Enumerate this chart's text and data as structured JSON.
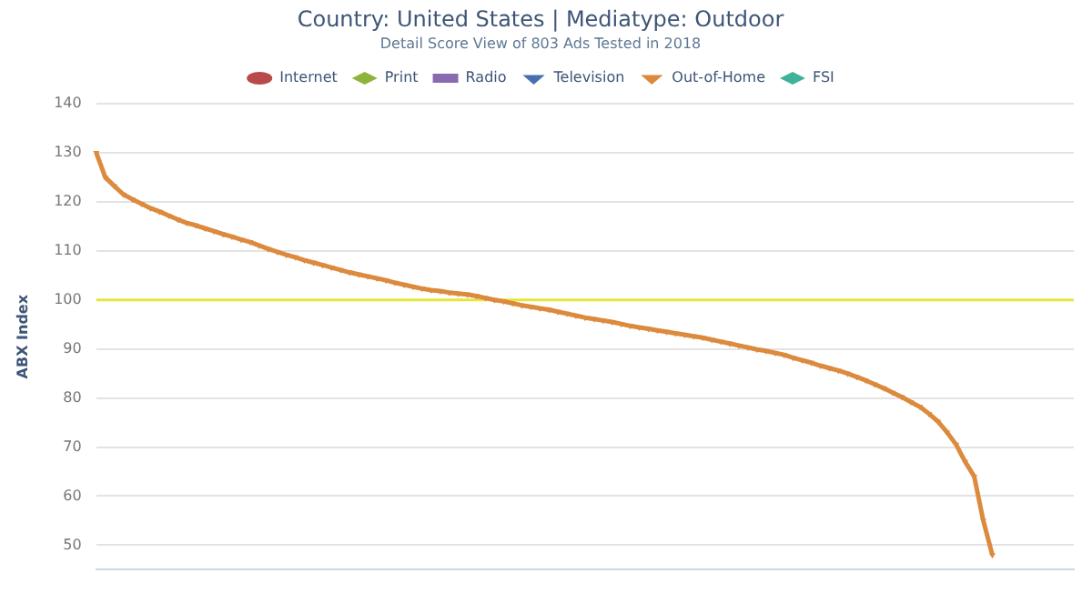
{
  "chart_data": {
    "type": "line",
    "title": "Country: United States | Mediatype: Outdoor",
    "subtitle": "Detail Score View of 803 Ads Tested in 2018",
    "ylabel": "ABX Index",
    "categories": [
      null,
      null,
      null,
      null,
      null,
      null,
      null,
      null,
      null,
      null,
      null,
      null,
      null,
      null,
      null,
      null,
      null,
      null,
      null,
      null,
      null,
      null,
      null,
      null,
      null,
      null,
      null,
      null,
      null,
      null,
      null,
      null,
      null,
      null,
      null,
      null,
      null,
      null,
      null,
      null,
      null,
      null,
      null,
      null,
      null,
      null,
      null,
      null,
      null,
      null,
      null,
      null,
      null,
      null,
      null,
      null,
      null,
      null,
      null,
      null,
      null,
      null,
      null,
      null,
      null,
      null,
      null,
      null,
      null,
      null,
      null,
      null,
      null,
      null,
      null,
      null,
      null,
      null,
      null,
      null,
      null,
      null,
      null,
      null,
      null,
      null,
      null,
      null,
      null,
      null,
      null,
      null,
      null,
      null,
      null,
      null,
      null,
      null,
      null,
      null,
      null,
      null,
      null,
      null,
      null,
      null,
      null,
      null,
      null
    ],
    "series": [
      {
        "name": "Internet",
        "color": "#b84a4a",
        "marker": "circle",
        "values": [
          null,
          null,
          null,
          null,
          null,
          null,
          null,
          null,
          null,
          null,
          null,
          null,
          null,
          null,
          null,
          null,
          null,
          null,
          null,
          null,
          null,
          null,
          null,
          null,
          null,
          null,
          null,
          null,
          null,
          null,
          null,
          null,
          null,
          null,
          null,
          null,
          null,
          null,
          null,
          null,
          null,
          null,
          null,
          null,
          null,
          null,
          null,
          null,
          null,
          null,
          null,
          null,
          null,
          null,
          null,
          null,
          null,
          null,
          null,
          null,
          null,
          null,
          null,
          null,
          null,
          null,
          null,
          null,
          null,
          null,
          null,
          null,
          null,
          null,
          null,
          null,
          null,
          null,
          null,
          null,
          null,
          null,
          null,
          null,
          null,
          null,
          null,
          null,
          null,
          null,
          null,
          null,
          null,
          null,
          null,
          null,
          null,
          null,
          null,
          null,
          null,
          null,
          null,
          null,
          null,
          null,
          null,
          null,
          null
        ]
      },
      {
        "name": "Print",
        "color": "#8db33a",
        "marker": "diamond",
        "values": [
          null,
          null,
          null,
          null,
          null,
          null,
          null,
          null,
          null,
          null,
          null,
          null,
          null,
          null,
          null,
          null,
          null,
          null,
          null,
          null,
          null,
          null,
          null,
          null,
          null,
          null,
          null,
          null,
          null,
          null,
          null,
          null,
          null,
          null,
          null,
          null,
          null,
          null,
          null,
          null,
          null,
          null,
          null,
          null,
          null,
          null,
          null,
          null,
          null,
          null,
          null,
          null,
          null,
          null,
          null,
          null,
          null,
          null,
          null,
          null,
          null,
          null,
          null,
          null,
          null,
          null,
          null,
          null,
          null,
          null,
          null,
          null,
          null,
          null,
          null,
          null,
          null,
          null,
          null,
          null,
          null,
          null,
          null,
          null,
          null,
          null,
          null,
          null,
          null,
          null,
          null,
          null,
          null,
          null,
          null,
          null,
          null,
          null,
          null,
          null,
          null,
          null,
          null,
          null,
          null,
          null,
          null,
          null,
          null
        ]
      },
      {
        "name": "Radio",
        "color": "#8a6bb0",
        "marker": "square",
        "values": [
          null,
          null,
          null,
          null,
          null,
          null,
          null,
          null,
          null,
          null,
          null,
          null,
          null,
          null,
          null,
          null,
          null,
          null,
          null,
          null,
          null,
          null,
          null,
          null,
          null,
          null,
          null,
          null,
          null,
          null,
          null,
          null,
          null,
          null,
          null,
          null,
          null,
          null,
          null,
          null,
          null,
          null,
          null,
          null,
          null,
          null,
          null,
          null,
          null,
          null,
          null,
          null,
          null,
          null,
          null,
          null,
          null,
          null,
          null,
          null,
          null,
          null,
          null,
          null,
          null,
          null,
          null,
          null,
          null,
          null,
          null,
          null,
          null,
          null,
          null,
          null,
          null,
          null,
          null,
          null,
          null,
          null,
          null,
          null,
          null,
          null,
          null,
          null,
          null,
          null,
          null,
          null,
          null,
          null,
          null,
          null,
          null,
          null,
          null,
          null,
          null,
          null,
          null,
          null,
          null,
          null,
          null,
          null,
          null
        ]
      },
      {
        "name": "Television",
        "color": "#4a6fb0",
        "marker": "triangle",
        "values": [
          null,
          null,
          null,
          null,
          null,
          null,
          null,
          null,
          null,
          null,
          null,
          null,
          null,
          null,
          null,
          null,
          null,
          null,
          null,
          null,
          null,
          null,
          null,
          null,
          null,
          null,
          null,
          null,
          null,
          null,
          null,
          null,
          null,
          null,
          null,
          null,
          null,
          null,
          null,
          null,
          null,
          null,
          null,
          null,
          null,
          null,
          null,
          null,
          null,
          null,
          null,
          null,
          null,
          null,
          null,
          null,
          null,
          null,
          null,
          null,
          null,
          null,
          null,
          null,
          null,
          null,
          null,
          null,
          null,
          null,
          null,
          null,
          null,
          null,
          null,
          null,
          null,
          null,
          null,
          null,
          null,
          null,
          null,
          null,
          null,
          null,
          null,
          null,
          null,
          null,
          null,
          null,
          null,
          null,
          null,
          null,
          null,
          null,
          null,
          null,
          null,
          null,
          null,
          null,
          null,
          null,
          null,
          null,
          null
        ]
      },
      {
        "name": "Out-of-Home",
        "color": "#dc8a3e",
        "marker": "triangle",
        "values": [
          130,
          125,
          123.2,
          121.5,
          120.5,
          119.6,
          118.7,
          118,
          117.2,
          116.4,
          115.7,
          115.2,
          114.6,
          114,
          113.4,
          112.9,
          112.3,
          111.8,
          111.1,
          110.4,
          109.8,
          109.2,
          108.7,
          108.1,
          107.6,
          107.1,
          106.6,
          106.1,
          105.6,
          105.2,
          104.8,
          104.4,
          104,
          103.5,
          103.1,
          102.7,
          102.3,
          102,
          101.8,
          101.5,
          101.3,
          101.1,
          100.8,
          100.4,
          100,
          99.7,
          99.3,
          98.9,
          98.6,
          98.3,
          98,
          97.6,
          97.2,
          96.8,
          96.4,
          96.1,
          95.8,
          95.5,
          95.1,
          94.7,
          94.4,
          94.1,
          93.8,
          93.5,
          93.2,
          92.9,
          92.6,
          92.3,
          91.9,
          91.5,
          91.1,
          90.7,
          90.3,
          89.9,
          89.6,
          89.2,
          88.8,
          88.2,
          87.7,
          87.2,
          86.6,
          86.1,
          85.6,
          85,
          84.3,
          83.6,
          82.8,
          82,
          81.1,
          80.2,
          79.2,
          78.2,
          76.8,
          75.2,
          73,
          70.5,
          67,
          64,
          55,
          48,
          null,
          null,
          null,
          null,
          null,
          null,
          null,
          null,
          null
        ]
      },
      {
        "name": "FSI",
        "color": "#3fb39a",
        "marker": "diamond",
        "values": [
          null,
          null,
          null,
          null,
          null,
          null,
          null,
          null,
          null,
          null,
          null,
          null,
          null,
          null,
          null,
          null,
          null,
          null,
          null,
          null,
          null,
          null,
          null,
          null,
          null,
          null,
          null,
          null,
          null,
          null,
          null,
          null,
          null,
          null,
          null,
          null,
          null,
          null,
          null,
          null,
          null,
          null,
          null,
          null,
          null,
          null,
          null,
          null,
          null,
          null,
          null,
          null,
          null,
          null,
          null,
          null,
          null,
          null,
          null,
          null,
          null,
          null,
          null,
          null,
          null,
          null,
          null,
          null,
          null,
          null,
          null,
          null,
          null,
          null,
          null,
          null,
          null,
          null,
          null,
          null,
          null,
          null,
          null,
          null,
          null,
          null,
          null,
          null,
          null,
          null,
          null,
          null,
          null,
          null,
          null,
          null,
          null,
          null,
          null,
          null,
          null,
          null,
          null,
          null,
          null,
          null,
          null,
          null,
          null
        ]
      }
    ],
    "ylim": [
      45,
      140
    ],
    "yticks": [
      50,
      60,
      70,
      80,
      90,
      100,
      110,
      120,
      130,
      140
    ],
    "ref_lines": [
      {
        "axis": "y",
        "value": 100,
        "color": "#e6e63a"
      }
    ],
    "grid": "y",
    "legend": "top",
    "tick_labels": "y"
  }
}
